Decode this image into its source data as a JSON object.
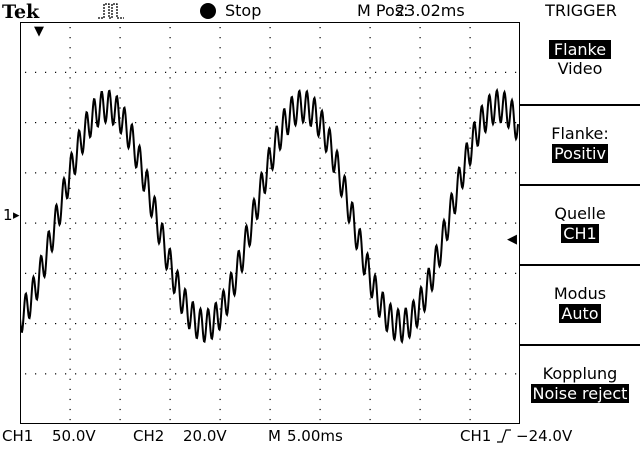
{
  "topbar": {
    "brand": "Tek",
    "trigger_icon": "trigger-pulse-icon",
    "run_state": "Stop",
    "mpos_label": "M Pos:",
    "mpos_value": "23.02ms",
    "menu_title": "TRIGGER"
  },
  "menu": {
    "type_primary": "Flanke",
    "type_secondary": "Video",
    "slope_label": "Flanke:",
    "slope_value": "Positiv",
    "source_label": "Quelle",
    "source_value": "CH1",
    "mode_label": "Modus",
    "mode_value": "Auto",
    "coupling_label": "Kopplung",
    "coupling_value": "Noise reject"
  },
  "bottombar": {
    "ch1_label": "CH1",
    "ch1_scale": "50.0V",
    "ch2_label": "CH2",
    "ch2_scale": "20.0V",
    "time_label": "M",
    "time_scale": "5.00ms",
    "trig_source": "CH1",
    "trig_level": "−24.0V"
  },
  "markers": {
    "ch1_ground": "1",
    "trigger_pos": "▼",
    "trigger_level": "◀"
  },
  "colors": {
    "background": "#ffffff",
    "foreground": "#000000",
    "highlight_bg": "#000000",
    "highlight_fg": "#ffffff"
  }
}
